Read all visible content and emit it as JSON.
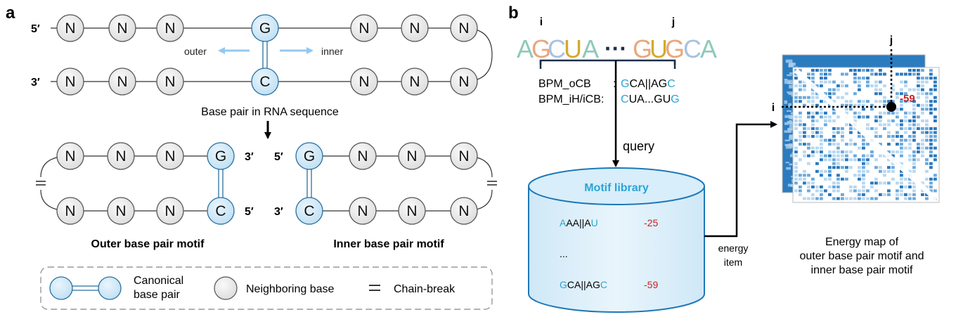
{
  "panel_a": {
    "label": "a",
    "prime5": "5",
    "prime3": "3",
    "prime_mark": "′",
    "nucleotide_N": "N",
    "nucleotide_G": "G",
    "nucleotide_C": "C",
    "outer_label": "outer",
    "inner_label": "inner",
    "caption_sequence": "Base pair in RNA sequence",
    "outer_motif_title": "Outer base pair motif",
    "inner_motif_title": "Inner base pair motif",
    "legend": {
      "canonical_line1": "Canonical",
      "canonical_line2": "base pair",
      "neighboring": "Neighboring base",
      "chain_break": "Chain-break"
    }
  },
  "panel_b": {
    "label": "b",
    "marker_i": "i",
    "marker_j": "j",
    "sequence_left": [
      "A",
      "G",
      "C",
      "U",
      "A"
    ],
    "sequence_ellipsis": "···",
    "sequence_right": [
      "G",
      "U",
      "G",
      "C",
      "A"
    ],
    "sequence_colors": {
      "A": "#8fc9ba",
      "G": "#e8a87c",
      "C": "#a8c2e2",
      "U": "#d4a92c"
    },
    "bpm_ocb_label": "BPM_oCB",
    "bpm_ocb_sep": ":",
    "bpm_ocb_value_hl1": "G",
    "bpm_ocb_value_mid": "CA||AG",
    "bpm_ocb_value_hl2": "C",
    "bpm_ih_label": "BPM_iH/iCB:",
    "bpm_ih_value_hl": "C",
    "bpm_ih_value_mid": "UA...GU",
    "bpm_ih_value_hl2": "G",
    "query_label": "query",
    "library_title": "Motif library",
    "library_rows": [
      {
        "hl": "A",
        "rest": "AA||A",
        "hl2": "U",
        "energy": "-25"
      },
      {
        "hl": "",
        "rest": "...",
        "hl2": "",
        "energy": ""
      },
      {
        "hl": "G",
        "rest": "CA||AG",
        "hl2": "C",
        "energy": "-59"
      }
    ],
    "energy_item_line1": "energy",
    "energy_item_line2": "item",
    "map_value": "-59",
    "map_caption_line1": "Energy map of",
    "map_caption_line2": "outer base pair motif and",
    "map_caption_line3": "inner base pair motif"
  },
  "colors": {
    "pair_fill": "#d5e9f6",
    "pair_stroke": "#2a6f9e",
    "neighbor_fill": "#ececec",
    "arrow_light": "#93c8ef",
    "highlight_blue": "#2aa4d6",
    "energy_red": "#cc2222",
    "library_fill": "#d8eefa",
    "library_stroke": "#1e78b8",
    "heatmap_dark": "#1f6fb2"
  }
}
